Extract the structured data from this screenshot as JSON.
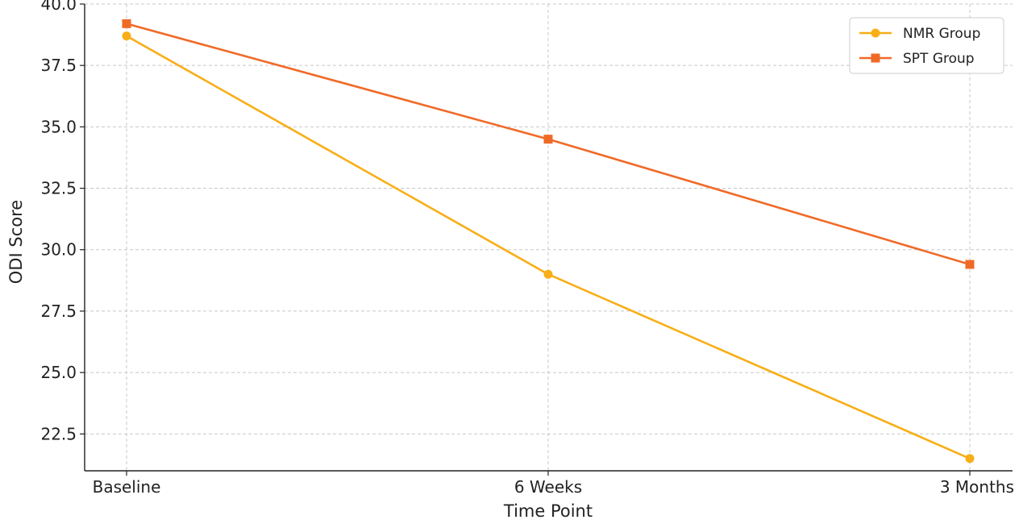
{
  "chart_data": {
    "type": "line",
    "title": "",
    "xlabel": "Time Point",
    "ylabel": "ODI Score",
    "categories": [
      "Baseline",
      "6 Weeks",
      "3 Months"
    ],
    "ylim": [
      21.0,
      40.0
    ],
    "yticks": [
      22.5,
      25.0,
      27.5,
      30.0,
      32.5,
      35.0,
      37.5,
      40.0
    ],
    "grid": true,
    "legend_position": "top-right",
    "series": [
      {
        "name": "NMR Group",
        "values": [
          38.7,
          29.0,
          21.5
        ],
        "color": "#f8ae16",
        "marker": "circle"
      },
      {
        "name": "SPT Group",
        "values": [
          39.2,
          34.5,
          29.4
        ],
        "color": "#f06a27",
        "marker": "square"
      }
    ]
  }
}
